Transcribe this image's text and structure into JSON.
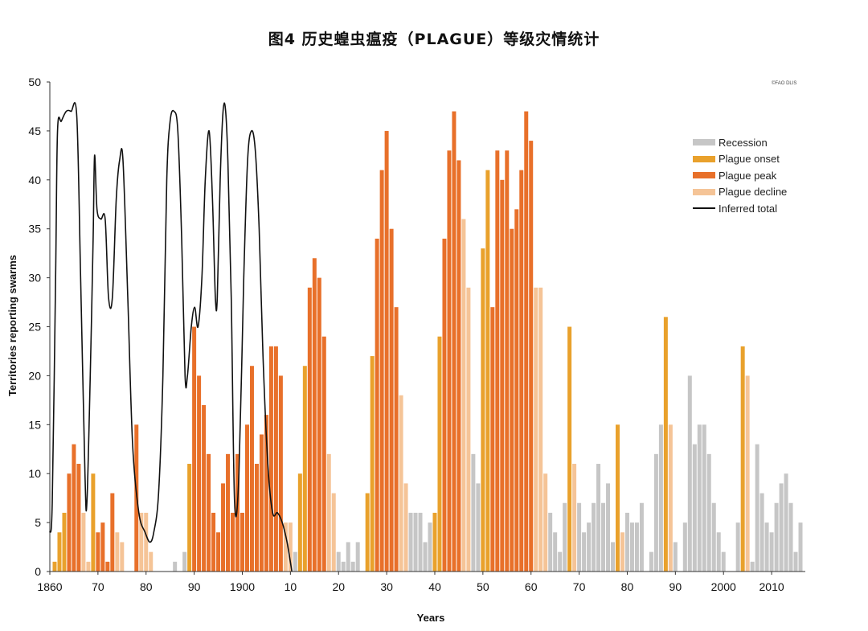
{
  "chart_data": {
    "type": "bar",
    "title": "图4 历史蝗虫瘟疫（PLAGUE）等级灾情统计",
    "credit": "©FAO DLIS",
    "xlabel": "Years",
    "ylabel": "Territories reporting swarms",
    "ylim": [
      0,
      50
    ],
    "xlim": [
      1860,
      2017
    ],
    "y_ticks": [
      0,
      5,
      10,
      15,
      20,
      25,
      30,
      35,
      40,
      45,
      50
    ],
    "x_ticks": [
      {
        "year": 1860,
        "label": "1860"
      },
      {
        "year": 1870,
        "label": "70"
      },
      {
        "year": 1880,
        "label": "80"
      },
      {
        "year": 1890,
        "label": "90"
      },
      {
        "year": 1900,
        "label": "1900"
      },
      {
        "year": 1910,
        "label": "10"
      },
      {
        "year": 1920,
        "label": "20"
      },
      {
        "year": 1930,
        "label": "30"
      },
      {
        "year": 1940,
        "label": "40"
      },
      {
        "year": 1950,
        "label": "50"
      },
      {
        "year": 1960,
        "label": "60"
      },
      {
        "year": 1970,
        "label": "70"
      },
      {
        "year": 1980,
        "label": "80"
      },
      {
        "year": 1990,
        "label": "90"
      },
      {
        "year": 2000,
        "label": "2000"
      },
      {
        "year": 2010,
        "label": "2010"
      }
    ],
    "legend_position": "right",
    "grid": false,
    "legend": [
      {
        "key": "recession",
        "label": "Recession",
        "color": "#c6c6c6",
        "kind": "bar"
      },
      {
        "key": "onset",
        "label": "Plague onset",
        "color": "#e9a12c",
        "kind": "bar"
      },
      {
        "key": "peak",
        "label": "Plague peak",
        "color": "#e8702a",
        "kind": "bar"
      },
      {
        "key": "decline",
        "label": "Plague decline",
        "color": "#f5c497",
        "kind": "bar"
      },
      {
        "key": "total",
        "label": "Inferred total",
        "color": "#111111",
        "kind": "line"
      }
    ],
    "bars": [
      [
        1861,
        1,
        "onset"
      ],
      [
        1862,
        4,
        "onset"
      ],
      [
        1863,
        6,
        "onset"
      ],
      [
        1864,
        10,
        "peak"
      ],
      [
        1865,
        13,
        "peak"
      ],
      [
        1866,
        11,
        "peak"
      ],
      [
        1867,
        6,
        "decline"
      ],
      [
        1868,
        1,
        "decline"
      ],
      [
        1869,
        10,
        "onset"
      ],
      [
        1870,
        4,
        "peak"
      ],
      [
        1871,
        5,
        "peak"
      ],
      [
        1872,
        1,
        "peak"
      ],
      [
        1873,
        8,
        "peak"
      ],
      [
        1874,
        4,
        "decline"
      ],
      [
        1875,
        3,
        "decline"
      ],
      [
        1878,
        15,
        "peak"
      ],
      [
        1879,
        6,
        "decline"
      ],
      [
        1880,
        6,
        "decline"
      ],
      [
        1881,
        2,
        "decline"
      ],
      [
        1886,
        1,
        "recession"
      ],
      [
        1888,
        2,
        "recession"
      ],
      [
        1889,
        11,
        "onset"
      ],
      [
        1890,
        25,
        "peak"
      ],
      [
        1891,
        20,
        "peak"
      ],
      [
        1892,
        17,
        "peak"
      ],
      [
        1893,
        12,
        "peak"
      ],
      [
        1894,
        6,
        "peak"
      ],
      [
        1895,
        4,
        "peak"
      ],
      [
        1896,
        9,
        "peak"
      ],
      [
        1897,
        12,
        "peak"
      ],
      [
        1898,
        6,
        "peak"
      ],
      [
        1899,
        12,
        "peak"
      ],
      [
        1900,
        6,
        "peak"
      ],
      [
        1901,
        15,
        "peak"
      ],
      [
        1902,
        21,
        "peak"
      ],
      [
        1903,
        11,
        "peak"
      ],
      [
        1904,
        14,
        "peak"
      ],
      [
        1905,
        16,
        "peak"
      ],
      [
        1906,
        23,
        "peak"
      ],
      [
        1907,
        23,
        "peak"
      ],
      [
        1908,
        20,
        "peak"
      ],
      [
        1909,
        5,
        "decline"
      ],
      [
        1910,
        5,
        "decline"
      ],
      [
        1911,
        2,
        "recession"
      ],
      [
        1912,
        10,
        "onset"
      ],
      [
        1913,
        21,
        "onset"
      ],
      [
        1914,
        29,
        "peak"
      ],
      [
        1915,
        32,
        "peak"
      ],
      [
        1916,
        30,
        "peak"
      ],
      [
        1917,
        24,
        "peak"
      ],
      [
        1918,
        12,
        "decline"
      ],
      [
        1919,
        8,
        "decline"
      ],
      [
        1920,
        2,
        "recession"
      ],
      [
        1921,
        1,
        "recession"
      ],
      [
        1922,
        3,
        "recession"
      ],
      [
        1923,
        1,
        "recession"
      ],
      [
        1924,
        3,
        "recession"
      ],
      [
        1926,
        8,
        "onset"
      ],
      [
        1927,
        22,
        "onset"
      ],
      [
        1928,
        34,
        "peak"
      ],
      [
        1929,
        41,
        "peak"
      ],
      [
        1930,
        45,
        "peak"
      ],
      [
        1931,
        35,
        "peak"
      ],
      [
        1932,
        27,
        "peak"
      ],
      [
        1933,
        18,
        "decline"
      ],
      [
        1934,
        9,
        "decline"
      ],
      [
        1935,
        6,
        "recession"
      ],
      [
        1936,
        6,
        "recession"
      ],
      [
        1937,
        6,
        "recession"
      ],
      [
        1938,
        3,
        "recession"
      ],
      [
        1939,
        5,
        "recession"
      ],
      [
        1940,
        6,
        "onset"
      ],
      [
        1941,
        24,
        "onset"
      ],
      [
        1942,
        34,
        "peak"
      ],
      [
        1943,
        43,
        "peak"
      ],
      [
        1944,
        47,
        "peak"
      ],
      [
        1945,
        42,
        "peak"
      ],
      [
        1946,
        36,
        "decline"
      ],
      [
        1947,
        29,
        "decline"
      ],
      [
        1948,
        12,
        "recession"
      ],
      [
        1949,
        9,
        "recession"
      ],
      [
        1950,
        33,
        "onset"
      ],
      [
        1951,
        41,
        "onset"
      ],
      [
        1952,
        27,
        "peak"
      ],
      [
        1953,
        43,
        "peak"
      ],
      [
        1954,
        40,
        "peak"
      ],
      [
        1955,
        43,
        "peak"
      ],
      [
        1956,
        35,
        "peak"
      ],
      [
        1957,
        37,
        "peak"
      ],
      [
        1958,
        41,
        "peak"
      ],
      [
        1959,
        47,
        "peak"
      ],
      [
        1960,
        44,
        "peak"
      ],
      [
        1961,
        29,
        "decline"
      ],
      [
        1962,
        29,
        "decline"
      ],
      [
        1963,
        10,
        "decline"
      ],
      [
        1964,
        6,
        "recession"
      ],
      [
        1965,
        4,
        "recession"
      ],
      [
        1966,
        2,
        "recession"
      ],
      [
        1967,
        7,
        "recession"
      ],
      [
        1968,
        25,
        "onset"
      ],
      [
        1969,
        11,
        "decline"
      ],
      [
        1970,
        7,
        "recession"
      ],
      [
        1971,
        4,
        "recession"
      ],
      [
        1972,
        5,
        "recession"
      ],
      [
        1973,
        7,
        "recession"
      ],
      [
        1974,
        11,
        "recession"
      ],
      [
        1975,
        7,
        "recession"
      ],
      [
        1976,
        9,
        "recession"
      ],
      [
        1977,
        3,
        "recession"
      ],
      [
        1978,
        15,
        "onset"
      ],
      [
        1979,
        4,
        "decline"
      ],
      [
        1980,
        6,
        "recession"
      ],
      [
        1981,
        5,
        "recession"
      ],
      [
        1982,
        5,
        "recession"
      ],
      [
        1983,
        7,
        "recession"
      ],
      [
        1985,
        2,
        "recession"
      ],
      [
        1986,
        12,
        "recession"
      ],
      [
        1987,
        15,
        "recession"
      ],
      [
        1988,
        26,
        "onset"
      ],
      [
        1989,
        15,
        "decline"
      ],
      [
        1990,
        3,
        "recession"
      ],
      [
        1992,
        5,
        "recession"
      ],
      [
        1993,
        20,
        "recession"
      ],
      [
        1994,
        13,
        "recession"
      ],
      [
        1995,
        15,
        "recession"
      ],
      [
        1996,
        15,
        "recession"
      ],
      [
        1997,
        12,
        "recession"
      ],
      [
        1998,
        7,
        "recession"
      ],
      [
        1999,
        4,
        "recession"
      ],
      [
        2000,
        2,
        "recession"
      ],
      [
        2003,
        5,
        "recession"
      ],
      [
        2004,
        23,
        "onset"
      ],
      [
        2005,
        20,
        "decline"
      ],
      [
        2006,
        1,
        "recession"
      ],
      [
        2007,
        13,
        "recession"
      ],
      [
        2008,
        8,
        "recession"
      ],
      [
        2009,
        5,
        "recession"
      ],
      [
        2010,
        4,
        "recession"
      ],
      [
        2011,
        7,
        "recession"
      ],
      [
        2012,
        9,
        "recession"
      ],
      [
        2013,
        10,
        "recession"
      ],
      [
        2014,
        7,
        "recession"
      ],
      [
        2015,
        2,
        "recession"
      ],
      [
        2016,
        5,
        "recession"
      ]
    ],
    "inferred_total": [
      [
        1860.0,
        4
      ],
      [
        1860.5,
        7
      ],
      [
        1861.2,
        30
      ],
      [
        1861.6,
        45
      ],
      [
        1862.4,
        46
      ],
      [
        1863.4,
        47
      ],
      [
        1864.4,
        47
      ],
      [
        1865.6,
        46.5
      ],
      [
        1866.4,
        30
      ],
      [
        1867.3,
        10
      ],
      [
        1867.7,
        7
      ],
      [
        1868.4,
        20
      ],
      [
        1869.0,
        34
      ],
      [
        1869.3,
        42.5
      ],
      [
        1869.8,
        37
      ],
      [
        1870.6,
        36
      ],
      [
        1871.5,
        36
      ],
      [
        1872.2,
        28
      ],
      [
        1873.0,
        28
      ],
      [
        1873.8,
        38
      ],
      [
        1874.5,
        42
      ],
      [
        1875.2,
        42
      ],
      [
        1876.2,
        28
      ],
      [
        1877.2,
        13
      ],
      [
        1878.5,
        6
      ],
      [
        1879.8,
        4
      ],
      [
        1880.8,
        3
      ],
      [
        1881.6,
        4
      ],
      [
        1882.6,
        8
      ],
      [
        1883.5,
        20
      ],
      [
        1884.3,
        40
      ],
      [
        1885.0,
        46
      ],
      [
        1885.8,
        47
      ],
      [
        1886.6,
        45
      ],
      [
        1887.4,
        34
      ],
      [
        1888.1,
        20
      ],
      [
        1888.6,
        20
      ],
      [
        1889.4,
        25
      ],
      [
        1890.1,
        27
      ],
      [
        1890.8,
        25
      ],
      [
        1891.6,
        30
      ],
      [
        1892.3,
        40
      ],
      [
        1893.1,
        45
      ],
      [
        1893.8,
        38
      ],
      [
        1894.4,
        28
      ],
      [
        1894.8,
        28
      ],
      [
        1895.4,
        40
      ],
      [
        1896.0,
        47
      ],
      [
        1896.5,
        47.2
      ],
      [
        1897.0,
        42
      ],
      [
        1897.7,
        28
      ],
      [
        1898.4,
        7
      ],
      [
        1899.3,
        10
      ],
      [
        1900.3,
        30
      ],
      [
        1901.1,
        42
      ],
      [
        1901.9,
        45
      ],
      [
        1902.7,
        43
      ],
      [
        1903.5,
        35
      ],
      [
        1904.3,
        22
      ],
      [
        1905.3,
        11
      ],
      [
        1906.3,
        6
      ],
      [
        1907.3,
        6
      ],
      [
        1908.3,
        5
      ],
      [
        1909.3,
        3
      ],
      [
        1910.3,
        0
      ]
    ]
  }
}
